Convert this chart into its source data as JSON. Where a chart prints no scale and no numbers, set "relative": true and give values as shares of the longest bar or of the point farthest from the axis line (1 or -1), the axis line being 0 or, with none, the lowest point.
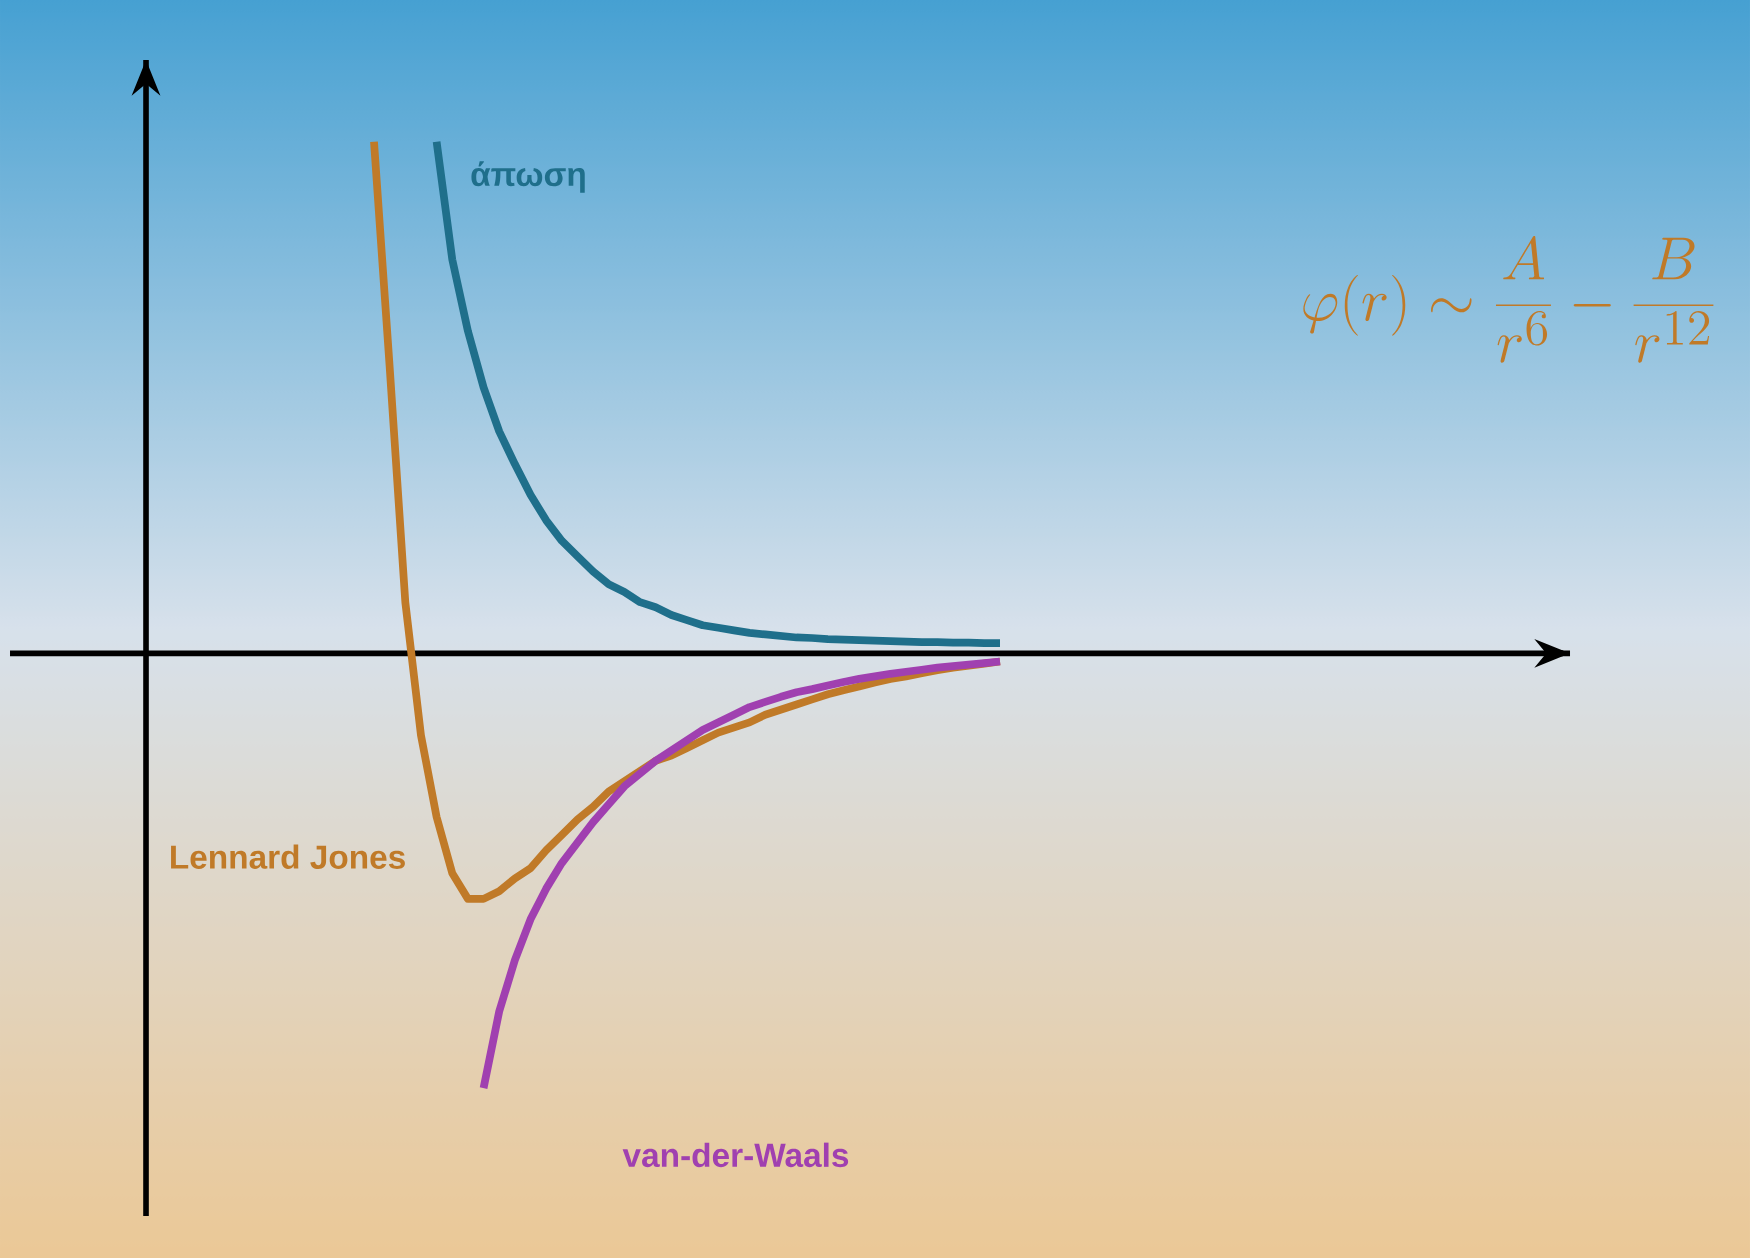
{
  "chart_data": {
    "type": "line",
    "relative": true,
    "legend": false,
    "marker": "none",
    "line_style": "solid",
    "annotations": [
      "\\varphi(r)\\sim\\frac{A}{r^{6}}-\\frac{B}{r^{12}}"
    ],
    "categories": [
      null,
      null,
      null,
      null,
      null,
      null,
      null,
      null,
      null,
      null,
      null,
      null,
      null,
      null,
      null,
      null,
      null,
      null,
      null,
      null,
      null,
      null,
      null,
      null,
      null,
      null,
      null,
      null,
      null,
      null,
      null,
      null,
      null,
      null,
      null,
      null,
      null,
      null,
      null,
      null,
      null
    ],
    "series": [
      {
        "name": "άπωση",
        "color": "#1f6f8b",
        "values": [
          null,
          null,
          null,
          null,
          1.0,
          0.77,
          0.63,
          0.52,
          0.434,
          0.37,
          0.31,
          0.26,
          0.22,
          0.19,
          0.16,
          0.135,
          0.12,
          0.1,
          0.09,
          0.075,
          0.065,
          0.055,
          0.05,
          0.045,
          0.04,
          0.037,
          0.034,
          0.031,
          0.03,
          0.028,
          0.027,
          0.026,
          0.025,
          0.024,
          0.023,
          0.022,
          0.022,
          0.021,
          0.021,
          0.02,
          0.02
        ]
      },
      {
        "name": "Lennard Jones",
        "color": "#c07a28",
        "values": [
          1.0,
          0.56,
          0.1,
          -0.16,
          -0.32,
          -0.43,
          -0.48,
          -0.48,
          -0.465,
          -0.44,
          -0.42,
          -0.385,
          -0.355,
          -0.325,
          -0.3,
          -0.27,
          -0.25,
          -0.23,
          -0.21,
          -0.2,
          -0.185,
          -0.17,
          -0.155,
          -0.145,
          -0.135,
          -0.12,
          -0.11,
          -0.1,
          -0.09,
          -0.08,
          -0.072,
          -0.065,
          -0.057,
          -0.05,
          -0.045,
          -0.039,
          -0.033,
          -0.028,
          -0.024,
          -0.02,
          -0.016
        ]
      },
      {
        "name": "van-der-Waals",
        "color": "#a040b0",
        "values": [
          null,
          null,
          null,
          null,
          null,
          null,
          null,
          -0.85,
          -0.7,
          -0.6,
          -0.52,
          -0.46,
          -0.41,
          -0.37,
          -0.33,
          -0.295,
          -0.26,
          -0.235,
          -0.21,
          -0.19,
          -0.17,
          -0.15,
          -0.135,
          -0.12,
          -0.105,
          -0.095,
          -0.085,
          -0.076,
          -0.07,
          -0.063,
          -0.056,
          -0.05,
          -0.045,
          -0.04,
          -0.036,
          -0.032,
          -0.028,
          -0.025,
          -0.022,
          -0.019,
          -0.016
        ]
      }
    ]
  }
}
